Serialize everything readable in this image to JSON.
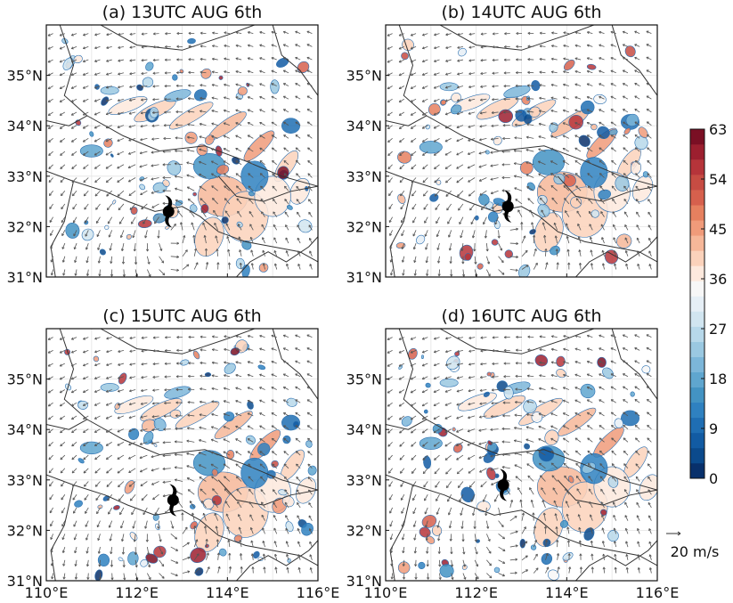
{
  "chart_data": {
    "type": "heatmap",
    "description_fields": {
      "variable": "filled contour field with overlaid wind vectors",
      "colormap": "RdBu_r"
    },
    "panels": [
      {
        "label": "(a) 13UTC AUG 6th",
        "typhoon_center": [
          112.7,
          32.3
        ]
      },
      {
        "label": "(b) 14UTC AUG 6th",
        "typhoon_center": [
          112.7,
          32.4
        ]
      },
      {
        "label": "(c) 15UTC AUG 6th",
        "typhoon_center": [
          112.8,
          32.6
        ]
      },
      {
        "label": "(d) 16UTC AUG 6th",
        "typhoon_center": [
          112.6,
          32.9
        ]
      }
    ],
    "x_ticks": [
      "110°E",
      "112°E",
      "114°E",
      "116°E"
    ],
    "y_ticks": [
      "31°N",
      "32°N",
      "33°N",
      "34°N",
      "35°N"
    ],
    "xlim": [
      110,
      116
    ],
    "ylim": [
      31,
      36
    ],
    "colorbar": {
      "ticks": [
        "0",
        "9",
        "18",
        "27",
        "36",
        "45",
        "54",
        "63"
      ],
      "range": [
        0,
        63
      ],
      "step": 3,
      "colors": [
        "#08306b",
        "#0b4a8c",
        "#125ba3",
        "#1f6eb3",
        "#2f81c0",
        "#4393c3",
        "#5fa6cf",
        "#7cb6d9",
        "#9ac8e1",
        "#b7d8ea",
        "#d1e5f0",
        "#e6eff6",
        "#f7f7f7",
        "#fde9dd",
        "#fbd2bb",
        "#f6b799",
        "#f09b7a",
        "#e6805f",
        "#d6604d",
        "#c74c43",
        "#b6343a",
        "#9c1f2f",
        "#7a0f24"
      ]
    },
    "wind_reference": "20 m/s",
    "grid": true
  }
}
